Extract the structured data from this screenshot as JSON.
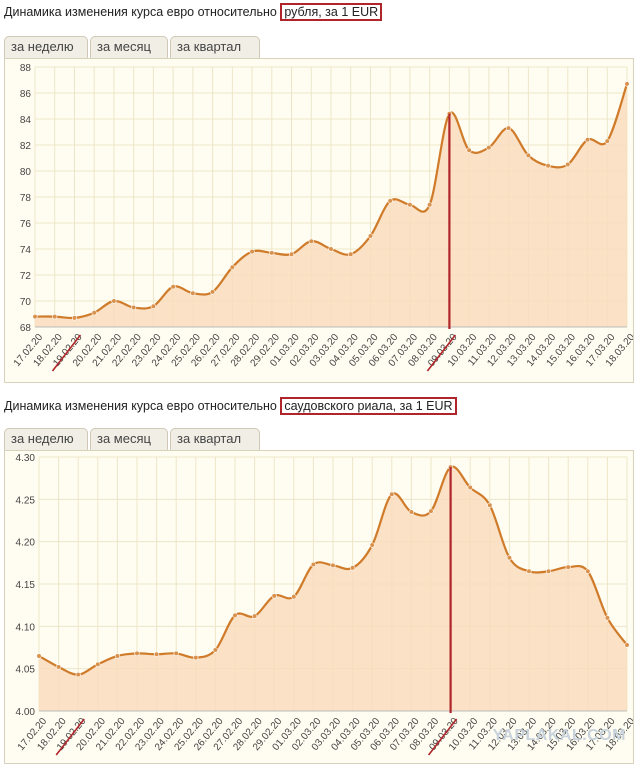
{
  "panels": [
    {
      "title_prefix": "Динамика изменения курса евро относительно ",
      "title_highlight": "рубля, за 1 EUR",
      "tabs": [
        "за неделю",
        "за месяц",
        "за квартал"
      ],
      "chart_data": {
        "type": "area",
        "x": [
          "17.02.20",
          "18.02.20",
          "19.02.20",
          "20.02.20",
          "21.02.20",
          "22.02.20",
          "23.02.20",
          "24.02.20",
          "25.02.20",
          "26.02.20",
          "27.02.20",
          "28.02.20",
          "29.02.20",
          "01.03.20",
          "02.03.20",
          "03.03.20",
          "04.03.20",
          "05.03.20",
          "06.03.20",
          "07.03.20",
          "08.03.20",
          "09.03.20",
          "10.03.20",
          "11.03.20",
          "12.03.20",
          "13.03.20",
          "14.03.20",
          "15.03.20",
          "16.03.20",
          "17.03.20",
          "18.03.20"
        ],
        "series": [
          {
            "values": [
              68.8,
              68.8,
              68.7,
              69.1,
              70.0,
              69.5,
              69.6,
              71.1,
              70.6,
              70.7,
              72.6,
              73.8,
              73.7,
              73.6,
              74.6,
              74.0,
              73.6,
              75.0,
              77.7,
              77.4,
              77.4,
              84.4,
              81.6,
              81.8,
              83.3,
              81.2,
              80.4,
              80.5,
              82.4,
              82.3,
              86.7
            ]
          }
        ],
        "ylim": [
          68,
          88
        ],
        "yticks": [
          "68",
          "70",
          "72",
          "74",
          "76",
          "78",
          "80",
          "82",
          "84",
          "86",
          "88"
        ],
        "grid": true,
        "annotations": {
          "vertical_marker_at": "09.03.20",
          "underlined_tick": "19.02.20",
          "underlined_tick2": "09.03.20"
        }
      }
    },
    {
      "title_prefix": "Динамика изменения курса евро относительно ",
      "title_highlight": "саудовского риала, за 1 EUR",
      "tabs": [
        "за неделю",
        "за месяц",
        "за квартал"
      ],
      "chart_data": {
        "type": "area",
        "x": [
          "17.02.20",
          "18.02.20",
          "19.02.20",
          "20.02.20",
          "21.02.20",
          "22.02.20",
          "23.02.20",
          "24.02.20",
          "25.02.20",
          "26.02.20",
          "27.02.20",
          "28.02.20",
          "29.02.20",
          "01.03.20",
          "02.03.20",
          "03.03.20",
          "04.03.20",
          "05.03.20",
          "06.03.20",
          "07.03.20",
          "08.03.20",
          "09.03.20",
          "10.03.20",
          "11.03.20",
          "12.03.20",
          "13.03.20",
          "14.03.20",
          "15.03.20",
          "16.03.20",
          "17.03.20",
          "18.03.20"
        ],
        "series": [
          {
            "values": [
              4.065,
              4.052,
              4.043,
              4.055,
              4.065,
              4.068,
              4.067,
              4.068,
              4.063,
              4.072,
              4.113,
              4.112,
              4.136,
              4.135,
              4.173,
              4.172,
              4.169,
              4.196,
              4.256,
              4.235,
              4.236,
              4.288,
              4.264,
              4.243,
              4.181,
              4.165,
              4.165,
              4.17,
              4.165,
              4.11,
              4.078
            ]
          }
        ],
        "ylim": [
          4.0,
          4.3
        ],
        "yticks": [
          "4.00",
          "4.05",
          "4.10",
          "4.15",
          "4.20",
          "4.25",
          "4.30"
        ],
        "grid": true,
        "annotations": {
          "vertical_marker_at": "09.03.20",
          "underlined_tick": "19.02.20",
          "underlined_tick2": "09.03.20"
        }
      }
    }
  ],
  "watermark": "YAPLAKAL.COM",
  "colors": {
    "line": "#cf7b2a",
    "fill": "#fadcbd",
    "grid": "#ece6c8",
    "marker": "#b0252a",
    "bg": "#fffdf1"
  }
}
